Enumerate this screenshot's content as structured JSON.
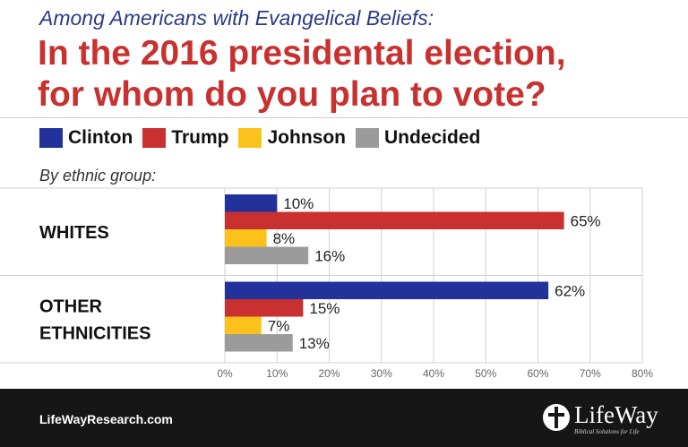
{
  "header": {
    "subtitle": "Among Americans with Evangelical Beliefs:",
    "title_line1": "In the 2016 presidental election,",
    "title_line2": "for whom do you plan to vote?"
  },
  "chart_data": {
    "type": "bar",
    "orientation": "horizontal",
    "subtitle": "Among Americans with Evangelical Beliefs:",
    "title": "In the 2016 presidental election, for whom do you plan to vote?",
    "group_label": "By ethnic group:",
    "categories": [
      "WHITES",
      "OTHER ETHNICITIES"
    ],
    "category_lines": [
      [
        "WHITES"
      ],
      [
        "OTHER",
        "ETHNICITIES"
      ]
    ],
    "series": [
      {
        "name": "Clinton",
        "color": "#23319a",
        "values": [
          10,
          62
        ]
      },
      {
        "name": "Trump",
        "color": "#c8312f",
        "values": [
          65,
          15
        ]
      },
      {
        "name": "Johnson",
        "color": "#fbc21c",
        "values": [
          8,
          7
        ]
      },
      {
        "name": "Undecided",
        "color": "#9b9b9b",
        "values": [
          16,
          13
        ]
      }
    ],
    "value_suffix": "%",
    "xlim": [
      0,
      80
    ],
    "xticks": [
      0,
      10,
      20,
      30,
      40,
      50,
      60,
      70,
      80
    ],
    "xtick_labels": [
      "0%",
      "10%",
      "20%",
      "30%",
      "40%",
      "50%",
      "60%",
      "70%",
      "80%"
    ],
    "grid": true,
    "legend_position": "top"
  },
  "footer": {
    "url": "LifeWayResearch.com",
    "logo_text": "LifeWay",
    "logo_tagline": "Biblical Solutions for Life"
  }
}
